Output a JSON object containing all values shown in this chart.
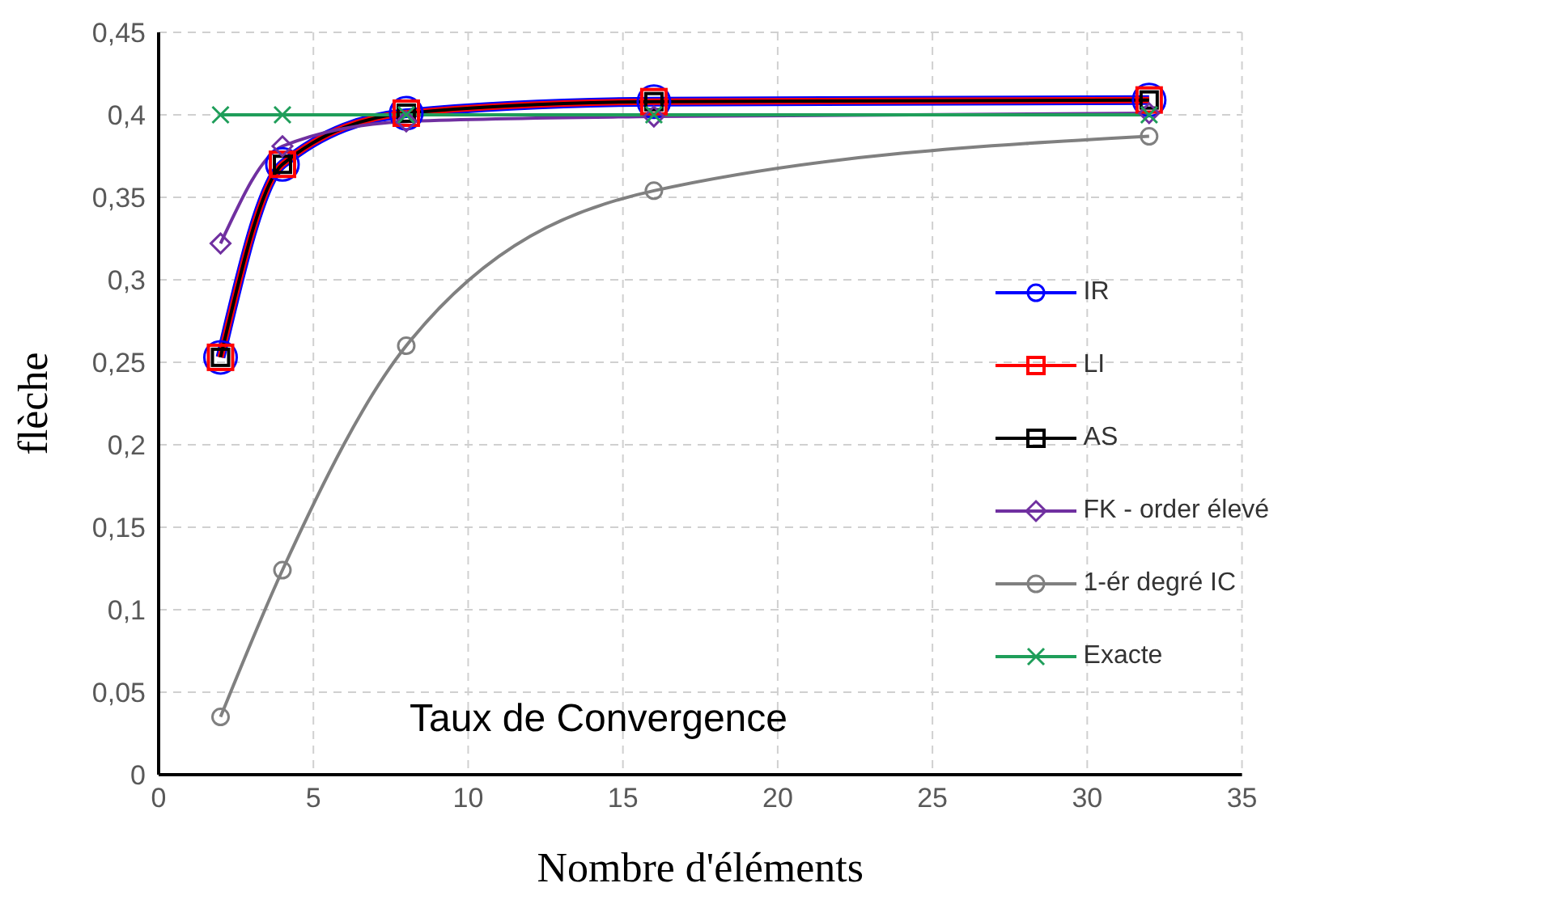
{
  "chart_data": {
    "type": "line",
    "xlabel": "Nombre d'éléments",
    "ylabel": "flèche",
    "annotations": [
      "Taux de Convergence"
    ],
    "x": [
      2,
      4,
      8,
      16,
      32
    ],
    "series": [
      {
        "name": "IR",
        "color": "#0000ff",
        "marker": "circle",
        "values": [
          0.253,
          0.37,
          0.401,
          0.408,
          0.409
        ]
      },
      {
        "name": "LI",
        "color": "#ff0000",
        "marker": "square",
        "values": [
          0.253,
          0.37,
          0.401,
          0.408,
          0.409
        ]
      },
      {
        "name": "AS",
        "color": "#000000",
        "marker": "square",
        "values": [
          0.253,
          0.37,
          0.401,
          0.408,
          0.409
        ]
      },
      {
        "name": "FK - order élevé",
        "color": "#7030a0",
        "marker": "diamond",
        "values": [
          0.322,
          0.381,
          0.396,
          0.399,
          0.401
        ]
      },
      {
        "name": "1-ér degré IC",
        "color": "#808080",
        "marker": "circle",
        "values": [
          0.035,
          0.124,
          0.26,
          0.354,
          0.387
        ]
      },
      {
        "name": "Exacte",
        "color": "#1f9e5a",
        "marker": "cross",
        "values": [
          0.4,
          0.4,
          0.4,
          0.4,
          0.4
        ]
      }
    ],
    "xlim": [
      0,
      35
    ],
    "xticks": [
      0,
      5,
      10,
      15,
      20,
      25,
      30,
      35
    ],
    "ylim": [
      0,
      0.45
    ],
    "yticks": [
      0,
      {
        "value": 0.05,
        "label": "0,05"
      },
      {
        "value": 0.1,
        "label": "0,1"
      },
      {
        "value": 0.15,
        "label": "0,15"
      },
      {
        "value": 0.2,
        "label": "0,2"
      },
      {
        "value": 0.25,
        "label": "0,25"
      },
      {
        "value": 0.3,
        "label": "0,3"
      },
      {
        "value": 0.35,
        "label": "0,35"
      },
      {
        "value": 0.4,
        "label": "0,4"
      },
      {
        "value": 0.45,
        "label": "0,45"
      }
    ],
    "grid": true,
    "legend": "right"
  }
}
